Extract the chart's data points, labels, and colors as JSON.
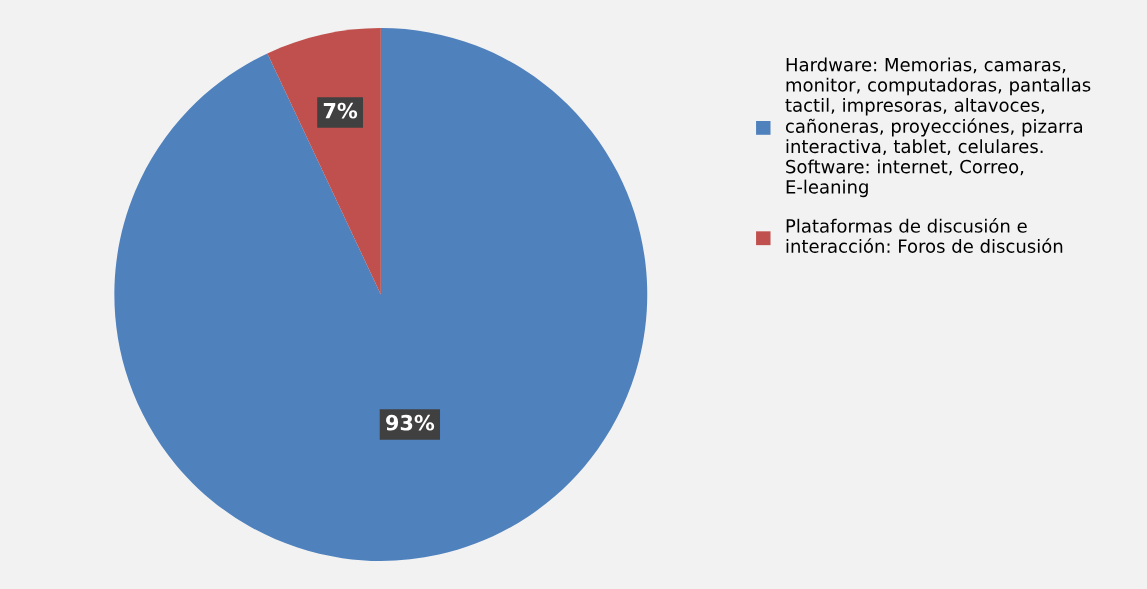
{
  "chart_data": {
    "type": "pie",
    "categories": [
      "Hardware: Memorias, camaras, monitor, computadoras, pantallas tactil, impresoras, altavoces, cañoneras, proyecciónes, pizarra interactiva, tablet, celulares. Software: internet, Correo, E-leaning",
      "Plataformas de discusión e interacción: Foros de discusión"
    ],
    "values": [
      93,
      7
    ],
    "colors": [
      "#4f81bd",
      "#c0504d"
    ],
    "value_labels": [
      "93%",
      "7%"
    ],
    "legend": "right"
  }
}
